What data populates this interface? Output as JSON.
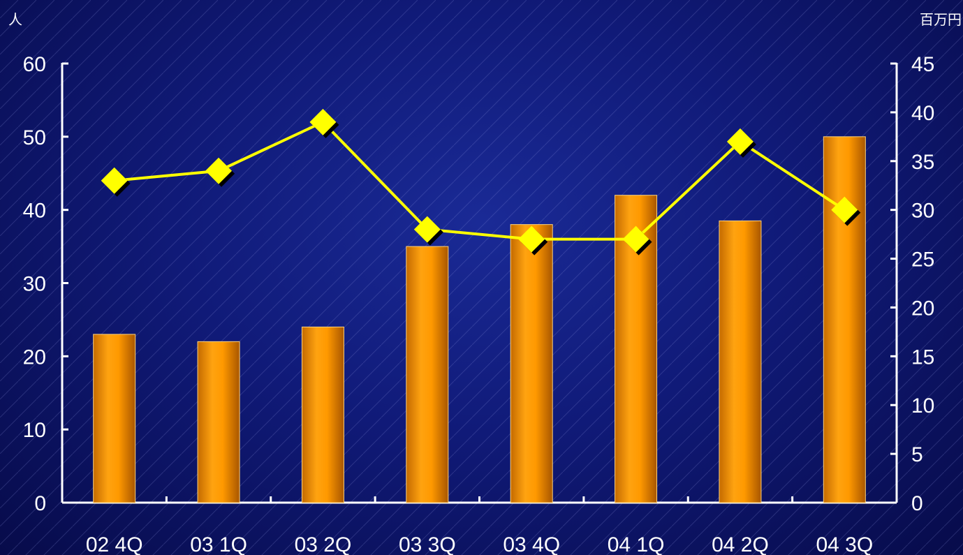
{
  "chart_data": {
    "type": "bar",
    "categories": [
      "02 4Q",
      "03 1Q",
      "03 2Q",
      "03 3Q",
      "03 4Q",
      "04 1Q",
      "04 2Q",
      "04 3Q"
    ],
    "series": [
      {
        "axis": "left",
        "type": "bar",
        "values": [
          23,
          22,
          24,
          35,
          38,
          42,
          38.5,
          50
        ],
        "color": "#ff9900"
      },
      {
        "axis": "right",
        "type": "line",
        "values": [
          33,
          34,
          39,
          28,
          27,
          27,
          37,
          30
        ],
        "color": "#ffff00"
      }
    ],
    "left_axis": {
      "unit": "人",
      "ylim": [
        0,
        60
      ],
      "ticks": [
        "0",
        "10",
        "20",
        "30",
        "40",
        "50",
        "60"
      ]
    },
    "right_axis": {
      "unit": "百万円",
      "ylim": [
        0,
        45
      ],
      "ticks": [
        "0",
        "5",
        "10",
        "15",
        "20",
        "25",
        "30",
        "35",
        "40",
        "45"
      ]
    },
    "grid": false,
    "legend": "none"
  },
  "colors": {
    "background": "#101a78",
    "bar": "#ff9900",
    "line": "#ffff00",
    "axis": "#ffffff"
  }
}
